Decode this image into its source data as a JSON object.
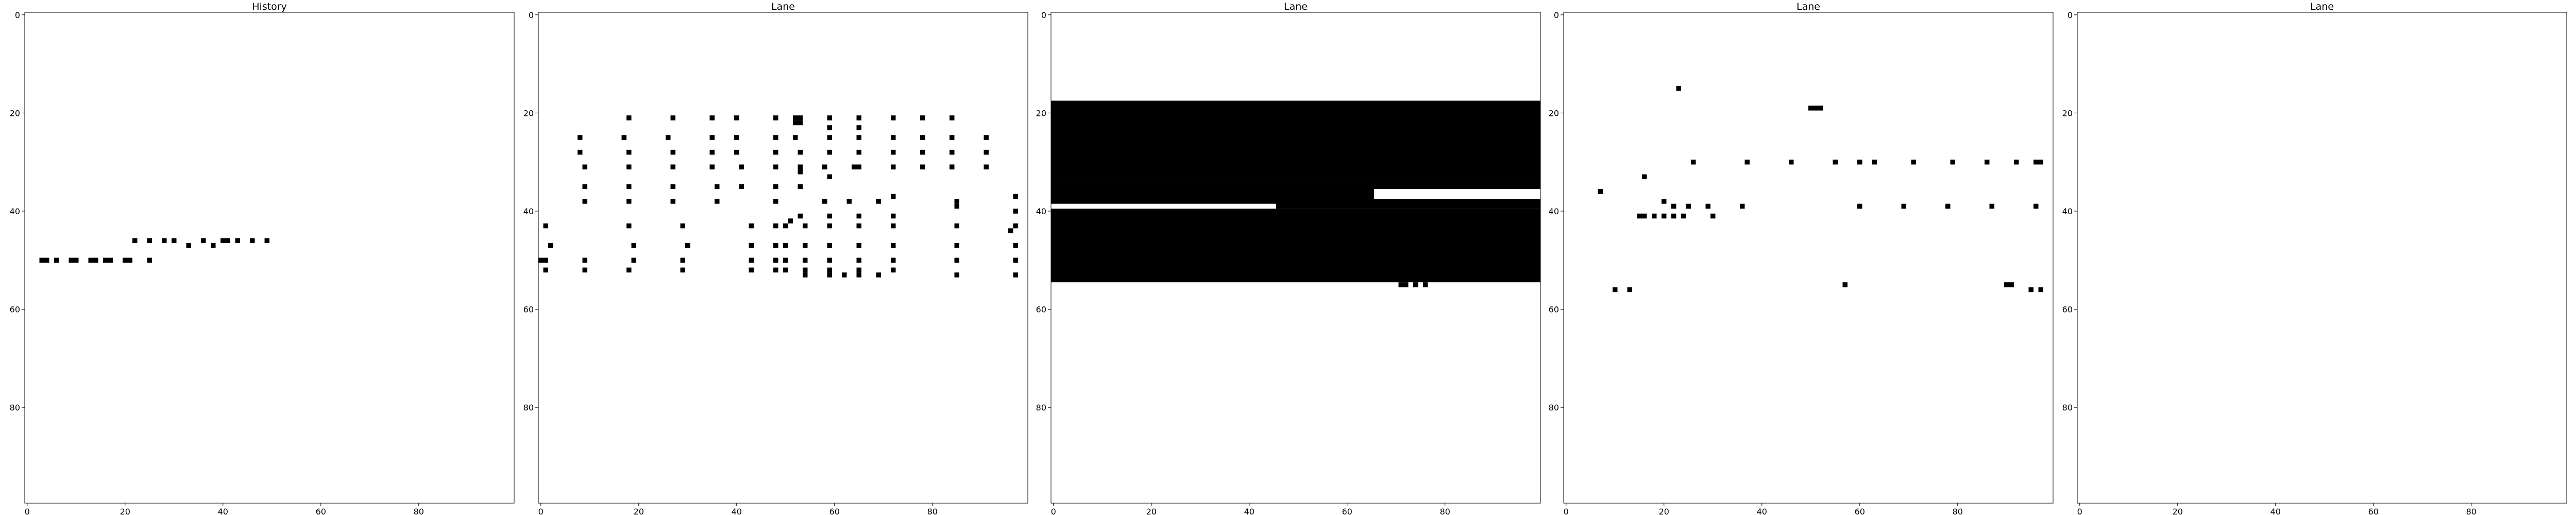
{
  "figure": {
    "background": "#ffffff",
    "mark_color": "#000000"
  },
  "chart_data": [
    {
      "type": "heatmap",
      "title": "History",
      "xlim": [
        0,
        100
      ],
      "ylim": [
        0,
        100
      ],
      "y_inverted": true,
      "xticks": [
        0,
        20,
        40,
        60,
        80
      ],
      "yticks": [
        0,
        20,
        40,
        60,
        80
      ],
      "cells": [
        [
          3,
          50
        ],
        [
          4,
          50
        ],
        [
          6,
          50
        ],
        [
          9,
          50
        ],
        [
          10,
          50
        ],
        [
          13,
          50
        ],
        [
          14,
          50
        ],
        [
          16,
          50
        ],
        [
          17,
          50
        ],
        [
          20,
          50
        ],
        [
          21,
          50
        ],
        [
          25,
          50
        ],
        [
          22,
          46
        ],
        [
          25,
          46
        ],
        [
          28,
          46
        ],
        [
          30,
          46
        ],
        [
          36,
          46
        ],
        [
          40,
          46
        ],
        [
          41,
          46
        ],
        [
          43,
          46
        ],
        [
          46,
          46
        ],
        [
          49,
          46
        ],
        [
          33,
          47
        ],
        [
          38,
          47
        ]
      ],
      "rects": []
    },
    {
      "type": "heatmap",
      "title": "Lane",
      "xlim": [
        0,
        100
      ],
      "ylim": [
        0,
        100
      ],
      "y_inverted": true,
      "xticks": [
        0,
        20,
        40,
        60,
        80
      ],
      "yticks": [
        0,
        20,
        40,
        60,
        80
      ],
      "cells": [
        [
          18,
          21
        ],
        [
          27,
          21
        ],
        [
          35,
          21
        ],
        [
          40,
          21
        ],
        [
          48,
          21
        ],
        [
          52,
          21
        ],
        [
          53,
          21
        ],
        [
          59,
          21
        ],
        [
          65,
          21
        ],
        [
          72,
          21
        ],
        [
          78,
          21
        ],
        [
          84,
          21
        ],
        [
          52,
          22
        ],
        [
          53,
          22
        ],
        [
          59,
          23
        ],
        [
          65,
          23
        ],
        [
          8,
          25
        ],
        [
          17,
          25
        ],
        [
          26,
          25
        ],
        [
          35,
          25
        ],
        [
          40,
          25
        ],
        [
          48,
          25
        ],
        [
          52,
          25
        ],
        [
          59,
          25
        ],
        [
          65,
          25
        ],
        [
          72,
          25
        ],
        [
          78,
          25
        ],
        [
          84,
          25
        ],
        [
          91,
          25
        ],
        [
          8,
          28
        ],
        [
          18,
          28
        ],
        [
          27,
          28
        ],
        [
          35,
          28
        ],
        [
          40,
          28
        ],
        [
          48,
          28
        ],
        [
          53,
          28
        ],
        [
          59,
          28
        ],
        [
          65,
          28
        ],
        [
          72,
          28
        ],
        [
          78,
          28
        ],
        [
          84,
          28
        ],
        [
          91,
          28
        ],
        [
          9,
          31
        ],
        [
          18,
          31
        ],
        [
          27,
          31
        ],
        [
          35,
          31
        ],
        [
          41,
          31
        ],
        [
          48,
          31
        ],
        [
          53,
          31
        ],
        [
          58,
          31
        ],
        [
          64,
          31
        ],
        [
          65,
          31
        ],
        [
          72,
          31
        ],
        [
          78,
          31
        ],
        [
          84,
          31
        ],
        [
          91,
          31
        ],
        [
          53,
          32
        ],
        [
          59,
          33
        ],
        [
          9,
          35
        ],
        [
          18,
          35
        ],
        [
          27,
          35
        ],
        [
          36,
          35
        ],
        [
          41,
          35
        ],
        [
          48,
          35
        ],
        [
          53,
          35
        ],
        [
          9,
          38
        ],
        [
          18,
          38
        ],
        [
          27,
          38
        ],
        [
          36,
          38
        ],
        [
          48,
          38
        ],
        [
          58,
          38
        ],
        [
          63,
          38
        ],
        [
          69,
          38
        ],
        [
          72,
          37
        ],
        [
          85,
          38
        ],
        [
          97,
          37
        ],
        [
          85,
          39
        ],
        [
          97,
          40
        ],
        [
          1,
          43
        ],
        [
          18,
          43
        ],
        [
          29,
          43
        ],
        [
          43,
          43
        ],
        [
          48,
          43
        ],
        [
          50,
          43
        ],
        [
          54,
          43
        ],
        [
          59,
          43
        ],
        [
          65,
          43
        ],
        [
          72,
          43
        ],
        [
          97,
          43
        ],
        [
          51,
          42
        ],
        [
          53,
          41
        ],
        [
          59,
          41
        ],
        [
          65,
          41
        ],
        [
          72,
          41
        ],
        [
          85,
          43
        ],
        [
          96,
          44
        ],
        [
          2,
          47
        ],
        [
          19,
          47
        ],
        [
          30,
          47
        ],
        [
          43,
          47
        ],
        [
          48,
          47
        ],
        [
          50,
          47
        ],
        [
          54,
          47
        ],
        [
          59,
          47
        ],
        [
          65,
          47
        ],
        [
          72,
          47
        ],
        [
          85,
          47
        ],
        [
          97,
          47
        ],
        [
          0,
          50
        ],
        [
          1,
          50
        ],
        [
          9,
          50
        ],
        [
          19,
          50
        ],
        [
          29,
          50
        ],
        [
          43,
          50
        ],
        [
          48,
          50
        ],
        [
          50,
          50
        ],
        [
          54,
          50
        ],
        [
          59,
          50
        ],
        [
          65,
          50
        ],
        [
          72,
          50
        ],
        [
          85,
          50
        ],
        [
          97,
          50
        ],
        [
          1,
          52
        ],
        [
          9,
          52
        ],
        [
          18,
          52
        ],
        [
          29,
          52
        ],
        [
          43,
          52
        ],
        [
          48,
          52
        ],
        [
          50,
          52
        ],
        [
          54,
          52
        ],
        [
          59,
          52
        ],
        [
          65,
          52
        ],
        [
          72,
          52
        ],
        [
          85,
          53
        ],
        [
          97,
          53
        ],
        [
          54,
          53
        ],
        [
          59,
          53
        ],
        [
          62,
          53
        ],
        [
          65,
          53
        ],
        [
          69,
          53
        ]
      ],
      "rects": []
    },
    {
      "type": "heatmap",
      "title": "Lane",
      "xlim": [
        0,
        100
      ],
      "ylim": [
        0,
        100
      ],
      "y_inverted": true,
      "xticks": [
        0,
        20,
        40,
        60,
        80
      ],
      "yticks": [
        0,
        20,
        40,
        60,
        80
      ],
      "cells": [
        [
          2,
          19
        ],
        [
          3,
          19
        ],
        [
          9,
          19
        ],
        [
          10,
          19
        ],
        [
          71,
          55
        ],
        [
          72,
          55
        ],
        [
          74,
          55
        ],
        [
          76,
          55
        ]
      ],
      "rects": [
        [
          0,
          18,
          100,
          16
        ],
        [
          0,
          34,
          66,
          4
        ],
        [
          66,
          34,
          34,
          2
        ],
        [
          0,
          38,
          46,
          1
        ],
        [
          46,
          38,
          54,
          2
        ],
        [
          0,
          40,
          100,
          15
        ]
      ]
    },
    {
      "type": "heatmap",
      "title": "Lane",
      "xlim": [
        0,
        100
      ],
      "ylim": [
        0,
        100
      ],
      "y_inverted": true,
      "xticks": [
        0,
        20,
        40,
        60,
        80
      ],
      "yticks": [
        0,
        20,
        40,
        60,
        80
      ],
      "cells": [
        [
          23,
          15
        ],
        [
          50,
          19
        ],
        [
          51,
          19
        ],
        [
          52,
          19
        ],
        [
          26,
          30
        ],
        [
          37,
          30
        ],
        [
          46,
          30
        ],
        [
          55,
          30
        ],
        [
          60,
          30
        ],
        [
          63,
          30
        ],
        [
          71,
          30
        ],
        [
          79,
          30
        ],
        [
          86,
          30
        ],
        [
          92,
          30
        ],
        [
          96,
          30
        ],
        [
          97,
          30
        ],
        [
          16,
          33
        ],
        [
          7,
          36
        ],
        [
          20,
          38
        ],
        [
          22,
          39
        ],
        [
          25,
          39
        ],
        [
          29,
          39
        ],
        [
          36,
          39
        ],
        [
          60,
          39
        ],
        [
          69,
          39
        ],
        [
          78,
          39
        ],
        [
          87,
          39
        ],
        [
          96,
          39
        ],
        [
          15,
          41
        ],
        [
          16,
          41
        ],
        [
          18,
          41
        ],
        [
          20,
          41
        ],
        [
          22,
          41
        ],
        [
          24,
          41
        ],
        [
          30,
          41
        ],
        [
          57,
          55
        ],
        [
          90,
          55
        ],
        [
          91,
          55
        ],
        [
          10,
          56
        ],
        [
          13,
          56
        ],
        [
          95,
          56
        ],
        [
          97,
          56
        ]
      ],
      "rects": []
    },
    {
      "type": "heatmap",
      "title": "Lane",
      "xlim": [
        0,
        100
      ],
      "ylim": [
        0,
        100
      ],
      "y_inverted": true,
      "xticks": [
        0,
        20,
        40,
        60,
        80
      ],
      "yticks": [
        0,
        20,
        40,
        60,
        80
      ],
      "cells": [],
      "rects": []
    }
  ]
}
